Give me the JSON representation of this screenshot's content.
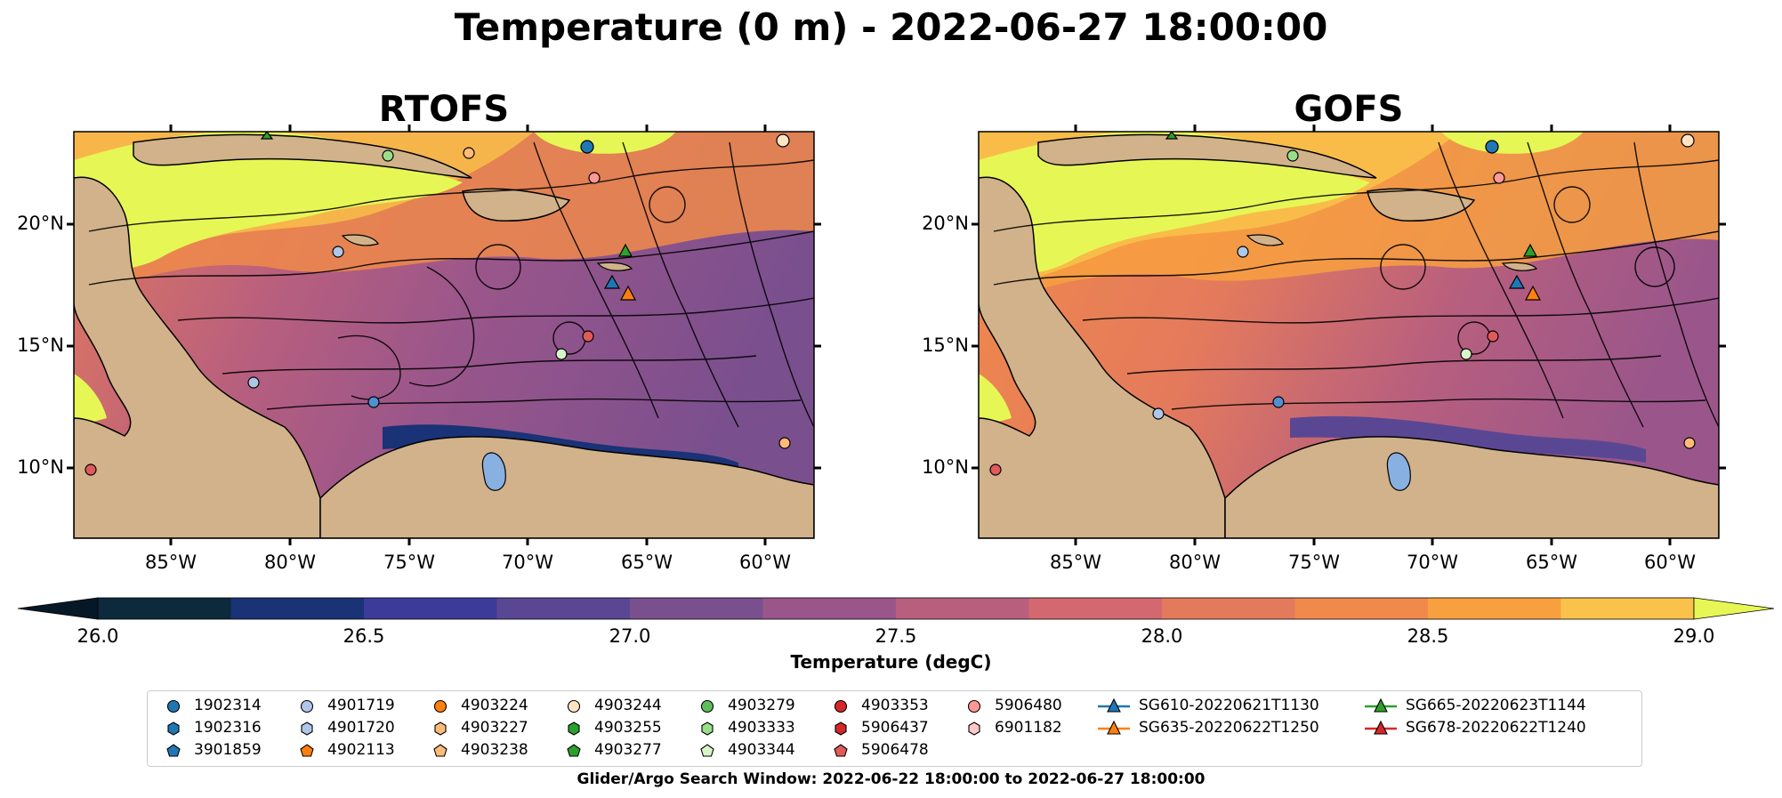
{
  "title": "Temperature (0 m) - 2022-06-27 18:00:00",
  "panels": [
    {
      "title": "RTOFS"
    },
    {
      "title": "GOFS"
    }
  ],
  "lat_ticks": [
    "20°N",
    "15°N",
    "10°N"
  ],
  "lon_ticks": [
    "85°W",
    "80°W",
    "75°W",
    "70°W",
    "65°W",
    "60°W"
  ],
  "colorbar": {
    "label": "Temperature (degC)",
    "ticks": [
      "26.0",
      "26.5",
      "27.0",
      "27.5",
      "28.0",
      "28.5",
      "29.0"
    ],
    "range": [
      26.0,
      29.0
    ],
    "colors": [
      "#0c2a3c",
      "#1a3276",
      "#3d3b9a",
      "#5a4794",
      "#7a4f8e",
      "#9a568a",
      "#b85f7e",
      "#d46870",
      "#e47a5c",
      "#f08a4a",
      "#f8a040",
      "#fac24a"
    ],
    "under_color": "#061826",
    "over_color": "#e6f755",
    "land_color": "#d1b28a"
  },
  "legend": {
    "items": [
      {
        "label": "1902314",
        "marker": "circle",
        "color": "#1f77b4"
      },
      {
        "label": "1902316",
        "marker": "hexagon",
        "color": "#1f77b4"
      },
      {
        "label": "3901859",
        "marker": "pentagon",
        "color": "#1f77b4"
      },
      {
        "label": "4901719",
        "marker": "circle",
        "color": "#aec7e8"
      },
      {
        "label": "4901720",
        "marker": "hexagon",
        "color": "#aec7e8"
      },
      {
        "label": "4902113",
        "marker": "pentagon",
        "color": "#ff7f0e"
      },
      {
        "label": "4903224",
        "marker": "circle",
        "color": "#ff7f0e"
      },
      {
        "label": "4903227",
        "marker": "hexagon",
        "color": "#ffbb78"
      },
      {
        "label": "4903238",
        "marker": "pentagon",
        "color": "#ffbb78"
      },
      {
        "label": "4903244",
        "marker": "circle",
        "color": "#ffe4c4"
      },
      {
        "label": "4903255",
        "marker": "hexagon",
        "color": "#2ca02c"
      },
      {
        "label": "4903277",
        "marker": "pentagon",
        "color": "#2ca02c"
      },
      {
        "label": "4903279",
        "marker": "circle",
        "color": "#5cbf5c"
      },
      {
        "label": "4903333",
        "marker": "hexagon",
        "color": "#98df8a"
      },
      {
        "label": "4903344",
        "marker": "pentagon",
        "color": "#d8f5c8"
      },
      {
        "label": "4903353",
        "marker": "circle",
        "color": "#d62728"
      },
      {
        "label": "5906437",
        "marker": "hexagon",
        "color": "#d62728"
      },
      {
        "label": "5906478",
        "marker": "pentagon",
        "color": "#e05a5a"
      },
      {
        "label": "5906480",
        "marker": "circle",
        "color": "#ff9896"
      },
      {
        "label": "6901182",
        "marker": "hexagon",
        "color": "#ffc8c8"
      },
      {
        "label": "SG610-20220621T1130",
        "marker": "triangle-line",
        "color": "#1f77b4"
      },
      {
        "label": "SG635-20220622T1250",
        "marker": "triangle-line",
        "color": "#ff7f0e"
      },
      {
        "label": "SG665-20220623T1144",
        "marker": "triangle-line",
        "color": "#2ca02c"
      },
      {
        "label": "SG678-20220622T1240",
        "marker": "triangle-line",
        "color": "#d62728"
      }
    ]
  },
  "search_window": "Glider/Argo Search Window: 2022-06-22 18:00:00 to 2022-06-27 18:00:00"
}
